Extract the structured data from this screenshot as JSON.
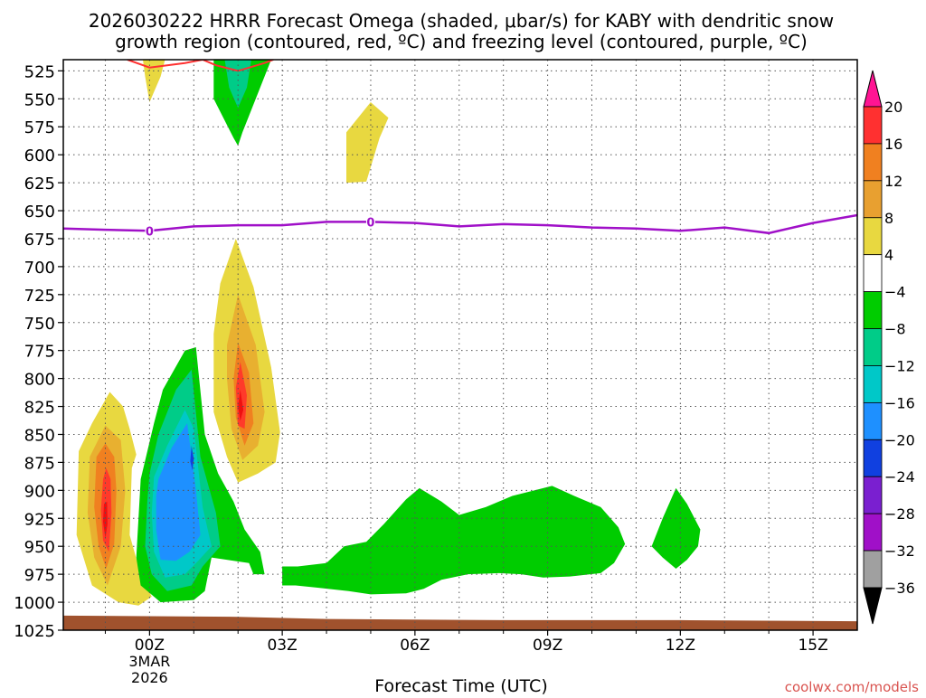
{
  "chart_data": {
    "type": "heatmap",
    "title": {
      "line1": "2026030222 HRRR Forecast Omega (shaded, μbar/s) for KABY with dendritic snow",
      "line2": "growth region (contoured, red, ºC) and freezing level (contoured, purple, ºC)"
    },
    "xlabel": "Forecast Time (UTC)",
    "ylabel": "",
    "credit": "coolwx.com/models",
    "x_range_hours": [
      -1.95,
      16.0
    ],
    "y_range_mb": [
      515,
      1025
    ],
    "y_ticks": [
      525,
      550,
      575,
      600,
      625,
      650,
      675,
      700,
      725,
      750,
      775,
      800,
      825,
      850,
      875,
      900,
      925,
      950,
      975,
      1000,
      1025
    ],
    "x_ticks": [
      {
        "h": 0,
        "label": "00Z",
        "sub1": "3MAR",
        "sub2": "2026"
      },
      {
        "h": 3,
        "label": "03Z"
      },
      {
        "h": 6,
        "label": "06Z"
      },
      {
        "h": 9,
        "label": "09Z"
      },
      {
        "h": 12,
        "label": "12Z"
      },
      {
        "h": 15,
        "label": "15Z"
      }
    ],
    "x_minor_hours": [
      -1,
      1,
      2,
      4,
      5,
      7,
      8,
      10,
      11,
      13,
      14
    ],
    "colorbar": {
      "labels": [
        "20",
        "16",
        "12",
        "8",
        "4",
        "−4",
        "−8",
        "−12",
        "−16",
        "−20",
        "−24",
        "−28",
        "−32",
        "−36"
      ],
      "bounds": [
        20,
        16,
        12,
        8,
        4,
        -4,
        -8,
        -12,
        -16,
        -20,
        -24,
        -28,
        -32,
        -36
      ],
      "colors": [
        "#ff1493",
        "#ff3030",
        "#f08020",
        "#e8a030",
        "#e8d840",
        "#ffffff",
        "#00cc00",
        "#00cc88",
        "#00c8c8",
        "#1e90ff",
        "#1040e0",
        "#7a1fd0",
        "#a010c8",
        "#a0a0a0",
        "#000000"
      ],
      "order_note": "top arrow, bands from 20 down to -36, bottom arrow"
    },
    "freezing_level": {
      "label": "0",
      "color": "#a010c8",
      "points": [
        [
          -1.95,
          666
        ],
        [
          -1,
          667
        ],
        [
          0,
          668
        ],
        [
          1,
          664
        ],
        [
          2,
          663
        ],
        [
          3,
          663
        ],
        [
          4,
          660
        ],
        [
          5,
          660
        ],
        [
          6,
          661
        ],
        [
          7,
          664
        ],
        [
          8,
          662
        ],
        [
          9,
          663
        ],
        [
          10,
          665
        ],
        [
          11,
          666
        ],
        [
          12,
          668
        ],
        [
          13,
          665
        ],
        [
          14,
          670
        ],
        [
          15,
          661
        ],
        [
          16,
          654
        ]
      ],
      "label_points": [
        [
          0,
          668
        ],
        [
          5,
          660
        ]
      ]
    },
    "dgz_contours": {
      "color": "#ff3030",
      "segments": [
        [
          [
            -0.5,
            515
          ],
          [
            0,
            522
          ],
          [
            0.8,
            518
          ],
          [
            1.2,
            515
          ]
        ],
        [
          [
            1.2,
            515
          ],
          [
            1.5,
            520
          ],
          [
            2.0,
            525
          ],
          [
            2.6,
            518
          ],
          [
            2.8,
            515
          ]
        ]
      ]
    },
    "omega_regions": [
      {
        "value_class": "4",
        "points": [
          [
            -0.15,
            515
          ],
          [
            -0.1,
            530
          ],
          [
            0,
            553
          ],
          [
            0.25,
            530
          ],
          [
            0.35,
            515
          ]
        ]
      },
      {
        "value_class": "-4",
        "points": [
          [
            1.45,
            515
          ],
          [
            1.45,
            550
          ],
          [
            1.9,
            585
          ],
          [
            2.0,
            592
          ],
          [
            2.1,
            580
          ],
          [
            2.5,
            540
          ],
          [
            2.75,
            515
          ]
        ]
      },
      {
        "value_class": "-8",
        "points": [
          [
            1.7,
            515
          ],
          [
            1.8,
            540
          ],
          [
            2.0,
            558
          ],
          [
            2.2,
            540
          ],
          [
            2.3,
            515
          ]
        ]
      },
      {
        "value_class": "4",
        "points": [
          [
            4.45,
            580
          ],
          [
            4.45,
            625
          ],
          [
            4.9,
            624
          ],
          [
            5.2,
            585
          ],
          [
            5.4,
            567
          ],
          [
            5.0,
            553
          ]
        ]
      },
      {
        "value_class": "4",
        "points": [
          [
            -0.3,
            868
          ],
          [
            -0.4,
            880
          ],
          [
            -0.45,
            940
          ],
          [
            -0.2,
            975
          ],
          [
            0.05,
            995
          ],
          [
            -0.25,
            1003
          ],
          [
            -0.7,
            1000
          ],
          [
            -1.3,
            985
          ],
          [
            -1.65,
            940
          ],
          [
            -1.6,
            865
          ],
          [
            -1.3,
            840
          ],
          [
            -0.9,
            812
          ],
          [
            -0.6,
            825
          ],
          [
            -0.45,
            845
          ]
        ]
      },
      {
        "value_class": "8",
        "points": [
          [
            -0.65,
            855
          ],
          [
            -0.55,
            900
          ],
          [
            -0.65,
            950
          ],
          [
            -0.95,
            985
          ],
          [
            -1.25,
            960
          ],
          [
            -1.4,
            920
          ],
          [
            -1.35,
            870
          ],
          [
            -1.0,
            842
          ]
        ]
      },
      {
        "value_class": "12",
        "points": [
          [
            -0.8,
            870
          ],
          [
            -0.75,
            900
          ],
          [
            -0.8,
            948
          ],
          [
            -0.98,
            970
          ],
          [
            -1.15,
            950
          ],
          [
            -1.25,
            915
          ],
          [
            -1.2,
            870
          ],
          [
            -1.0,
            858
          ]
        ]
      },
      {
        "value_class": "16",
        "points": [
          [
            -0.88,
            890
          ],
          [
            -0.86,
            920
          ],
          [
            -0.92,
            955
          ],
          [
            -1.05,
            945
          ],
          [
            -1.1,
            918
          ],
          [
            -1.05,
            890
          ],
          [
            -0.98,
            880
          ]
        ]
      },
      {
        "value_class": "20",
        "points": [
          [
            -0.96,
            910
          ],
          [
            -0.95,
            930
          ],
          [
            -1.0,
            943
          ],
          [
            -1.05,
            928
          ],
          [
            -1.03,
            912
          ]
        ]
      },
      {
        "value_class": "-4",
        "points": [
          [
            -0.2,
            890
          ],
          [
            0.1,
            840
          ],
          [
            0.3,
            810
          ],
          [
            0.8,
            775
          ],
          [
            1.05,
            772
          ],
          [
            1.25,
            850
          ],
          [
            1.55,
            885
          ],
          [
            1.9,
            910
          ],
          [
            2.15,
            935
          ],
          [
            2.5,
            955
          ],
          [
            2.6,
            975
          ],
          [
            2.35,
            975
          ],
          [
            2.25,
            965
          ],
          [
            1.4,
            960
          ],
          [
            1.25,
            990
          ],
          [
            1.0,
            998
          ],
          [
            0.25,
            1000
          ],
          [
            -0.2,
            985
          ],
          [
            -0.3,
            960
          ]
        ]
      },
      {
        "value_class": "-8",
        "points": [
          [
            0.0,
            885
          ],
          [
            0.2,
            850
          ],
          [
            0.6,
            810
          ],
          [
            0.95,
            792
          ],
          [
            1.15,
            870
          ],
          [
            1.5,
            920
          ],
          [
            1.6,
            950
          ],
          [
            1.2,
            968
          ],
          [
            0.95,
            985
          ],
          [
            0.4,
            990
          ],
          [
            0.05,
            975
          ],
          [
            -0.1,
            950
          ],
          [
            -0.05,
            910
          ]
        ]
      },
      {
        "value_class": "-12",
        "points": [
          [
            0.1,
            888
          ],
          [
            0.4,
            860
          ],
          [
            0.8,
            828
          ],
          [
            1.0,
            845
          ],
          [
            1.2,
            915
          ],
          [
            1.4,
            950
          ],
          [
            1.1,
            963
          ],
          [
            0.8,
            975
          ],
          [
            0.35,
            978
          ],
          [
            0.1,
            955
          ],
          [
            0.05,
            920
          ]
        ]
      },
      {
        "value_class": "-16",
        "points": [
          [
            0.2,
            890
          ],
          [
            0.5,
            862
          ],
          [
            0.85,
            840
          ],
          [
            1.05,
            900
          ],
          [
            1.15,
            940
          ],
          [
            0.9,
            955
          ],
          [
            0.6,
            963
          ],
          [
            0.25,
            962
          ],
          [
            0.15,
            935
          ],
          [
            0.15,
            905
          ]
        ]
      },
      {
        "value_class": "-20",
        "points": [
          [
            0.95,
            860
          ],
          [
            1.0,
            872
          ],
          [
            0.97,
            882
          ],
          [
            0.92,
            874
          ]
        ]
      },
      {
        "value_class": "4",
        "points": [
          [
            1.45,
            830
          ],
          [
            1.45,
            760
          ],
          [
            1.6,
            715
          ],
          [
            1.95,
            675
          ],
          [
            2.35,
            718
          ],
          [
            2.75,
            790
          ],
          [
            2.95,
            848
          ],
          [
            2.85,
            875
          ],
          [
            2.45,
            885
          ],
          [
            2.0,
            893
          ],
          [
            1.75,
            870
          ]
        ]
      },
      {
        "value_class": "8",
        "points": [
          [
            1.75,
            800
          ],
          [
            1.75,
            770
          ],
          [
            2.0,
            725
          ],
          [
            2.4,
            770
          ],
          [
            2.6,
            830
          ],
          [
            2.45,
            860
          ],
          [
            2.1,
            873
          ],
          [
            1.85,
            845
          ]
        ]
      },
      {
        "value_class": "12",
        "points": [
          [
            1.9,
            800
          ],
          [
            2.0,
            768
          ],
          [
            2.25,
            795
          ],
          [
            2.35,
            840
          ],
          [
            2.15,
            860
          ],
          [
            1.95,
            835
          ]
        ]
      },
      {
        "value_class": "16",
        "points": [
          [
            1.95,
            808
          ],
          [
            2.05,
            785
          ],
          [
            2.2,
            815
          ],
          [
            2.15,
            845
          ],
          [
            2.0,
            842
          ]
        ]
      },
      {
        "value_class": "20",
        "points": [
          [
            2.0,
            825
          ],
          [
            2.05,
            810
          ],
          [
            2.12,
            828
          ],
          [
            2.05,
            838
          ]
        ]
      },
      {
        "value_class": "-4",
        "points": [
          [
            3.0,
            968
          ],
          [
            3.35,
            968
          ],
          [
            4.0,
            965
          ],
          [
            4.4,
            950
          ],
          [
            4.9,
            946
          ],
          [
            5.3,
            930
          ],
          [
            5.8,
            908
          ],
          [
            6.1,
            898
          ],
          [
            6.6,
            910
          ],
          [
            7.0,
            922
          ],
          [
            7.6,
            915
          ],
          [
            8.2,
            905
          ],
          [
            8.9,
            898
          ],
          [
            9.1,
            896
          ],
          [
            9.6,
            905
          ],
          [
            10.2,
            915
          ],
          [
            10.6,
            933
          ],
          [
            10.75,
            948
          ],
          [
            10.5,
            965
          ],
          [
            10.2,
            974
          ],
          [
            9.5,
            977
          ],
          [
            8.9,
            978
          ],
          [
            8.4,
            975
          ],
          [
            7.9,
            974
          ],
          [
            7.2,
            975
          ],
          [
            6.6,
            980
          ],
          [
            6.2,
            988
          ],
          [
            5.8,
            992
          ],
          [
            5.0,
            993
          ],
          [
            4.5,
            990
          ],
          [
            3.8,
            987
          ],
          [
            3.3,
            985
          ],
          [
            3.0,
            985
          ]
        ]
      },
      {
        "value_class": "-4",
        "points": [
          [
            11.35,
            950
          ],
          [
            11.6,
            925
          ],
          [
            11.9,
            898
          ],
          [
            12.15,
            912
          ],
          [
            12.45,
            935
          ],
          [
            12.4,
            950
          ],
          [
            12.15,
            962
          ],
          [
            11.9,
            970
          ],
          [
            11.6,
            960
          ]
        ]
      }
    ],
    "ground": {
      "color": "#a0522d",
      "points": [
        [
          -1.95,
          1012
        ],
        [
          2.0,
          1013
        ],
        [
          4.0,
          1015
        ],
        [
          8.0,
          1016
        ],
        [
          12.0,
          1016
        ],
        [
          16.0,
          1017
        ]
      ]
    }
  }
}
